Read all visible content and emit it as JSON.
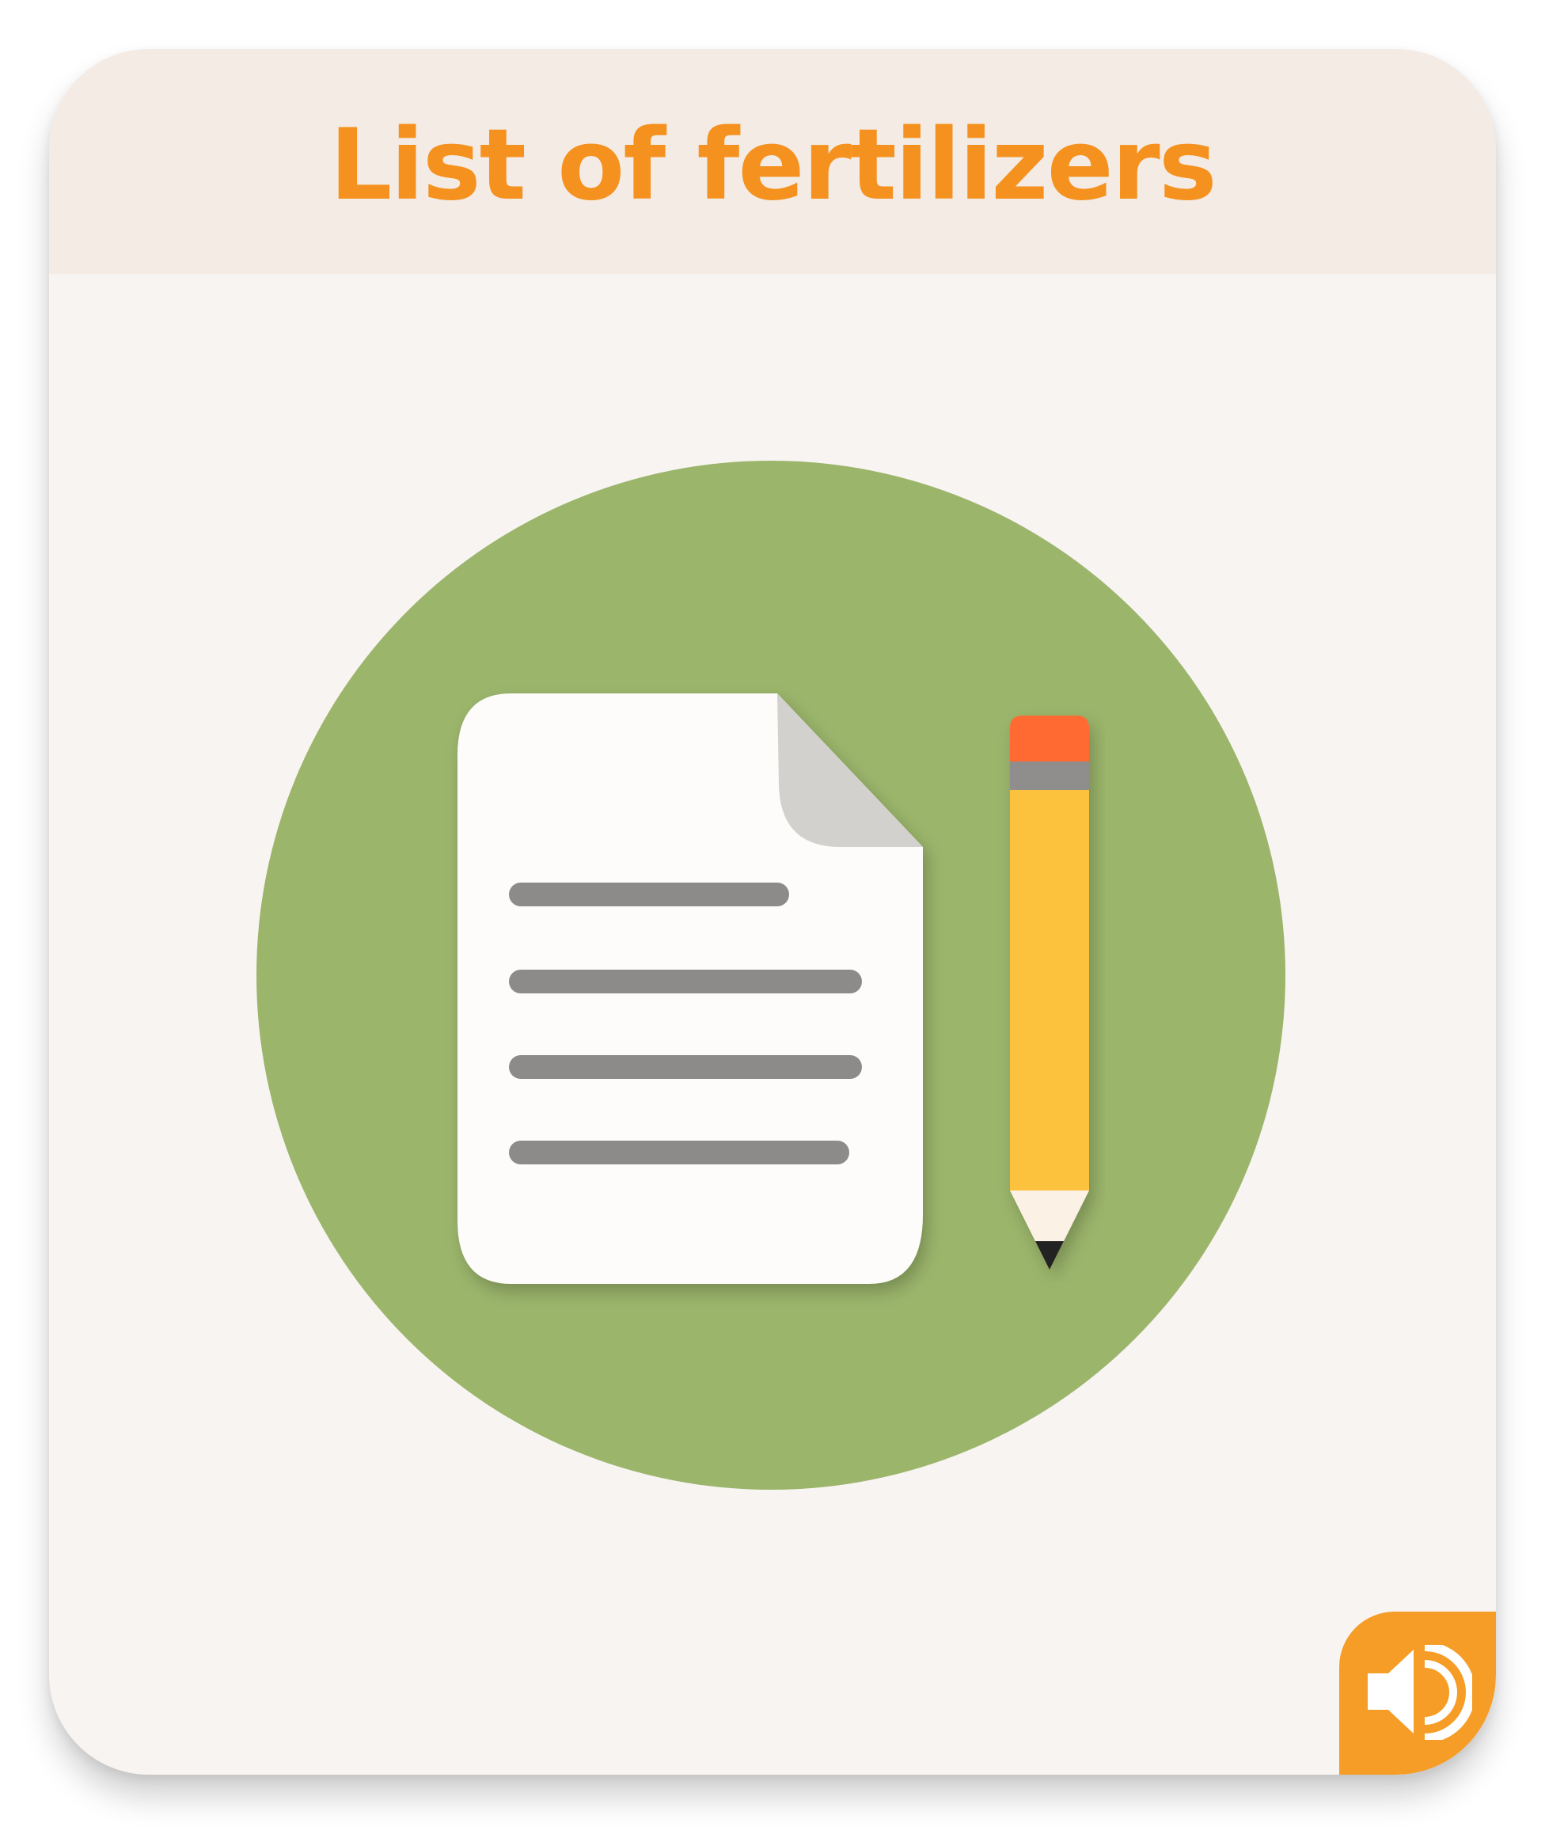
{
  "card": {
    "title": "List of fertilizers"
  },
  "illustration": {
    "icon": "document-with-pencil-icon",
    "background_color": "#9bb56b",
    "document_color": "#fdfcfb",
    "line_color": "#8c8b89",
    "pencil_color": "#fdc23c",
    "eraser_color": "#ff6a33"
  },
  "audio_button": {
    "icon": "speaker-icon",
    "color": "#f59d26"
  },
  "colors": {
    "title": "#f5921f",
    "header_bg": "#f4ebe5",
    "card_bg": "#f8f4f2"
  }
}
